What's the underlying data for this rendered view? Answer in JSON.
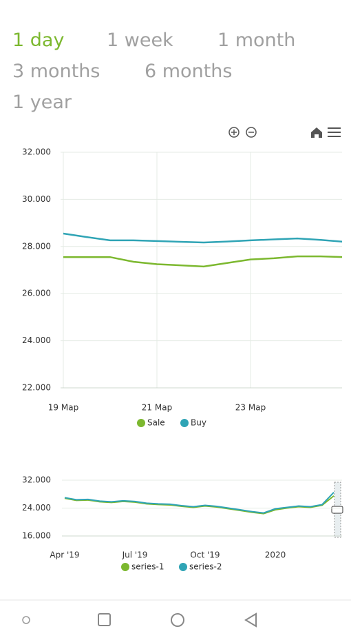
{
  "range_tabs": [
    "1 day",
    "1 week",
    "1 month",
    "3 months",
    "6 months",
    "1 year"
  ],
  "selected_tab": 0,
  "chart_data": [
    {
      "type": "line",
      "categories": [
        "19 Мар",
        null,
        null,
        null,
        "21 Мар",
        null,
        null,
        null,
        "23 Мар",
        null,
        null,
        null,
        null
      ],
      "series": [
        {
          "name": "Sale",
          "color": "#7cb82f",
          "values": [
            27550,
            27550,
            27550,
            27350,
            27250,
            27200,
            27150,
            27300,
            27450,
            27500,
            27580,
            27580,
            27550
          ]
        },
        {
          "name": "Buy",
          "color": "#2fa4b5",
          "values": [
            28550,
            28400,
            28260,
            28260,
            28230,
            28200,
            28170,
            28210,
            28260,
            28300,
            28340,
            28280,
            28200
          ]
        }
      ],
      "ylim": [
        22000,
        32000
      ],
      "yticks": [
        {
          "value": 22000,
          "label": "22.000"
        },
        {
          "value": 24000,
          "label": "24.000"
        },
        {
          "value": 26000,
          "label": "26.000"
        },
        {
          "value": 28000,
          "label": "28.000"
        },
        {
          "value": 30000,
          "label": "30.000"
        },
        {
          "value": 32000,
          "label": "32.000"
        }
      ],
      "grid": true,
      "xgrid": true
    },
    {
      "type": "line",
      "categories": [
        "Apr '19",
        null,
        null,
        null,
        null,
        null,
        "Jul '19",
        null,
        null,
        null,
        null,
        null,
        "Oct '19",
        null,
        null,
        null,
        null,
        null,
        "2020",
        null,
        null,
        null,
        null,
        null
      ],
      "series": [
        {
          "name": "series-1",
          "color": "#7cb82f",
          "values": [
            26800,
            26200,
            26300,
            25800,
            25600,
            25900,
            25700,
            25200,
            25000,
            24900,
            24500,
            24200,
            24600,
            24300,
            23800,
            23300,
            22800,
            22400,
            23500,
            24000,
            24400,
            24200,
            24800,
            27500
          ]
        },
        {
          "name": "series-2",
          "color": "#2fa4b5",
          "values": [
            27000,
            26400,
            26500,
            26000,
            25800,
            26100,
            25900,
            25400,
            25200,
            25100,
            24700,
            24400,
            24800,
            24500,
            24000,
            23500,
            23000,
            22600,
            23800,
            24200,
            24600,
            24400,
            25000,
            28500
          ]
        }
      ],
      "ylim": [
        16000,
        32000
      ],
      "yticks": [
        {
          "value": 16000,
          "label": "16.000"
        },
        {
          "value": 24000,
          "label": "24.000"
        },
        {
          "value": 32000,
          "label": "32.000"
        }
      ],
      "grid": true,
      "xgrid": false
    }
  ]
}
